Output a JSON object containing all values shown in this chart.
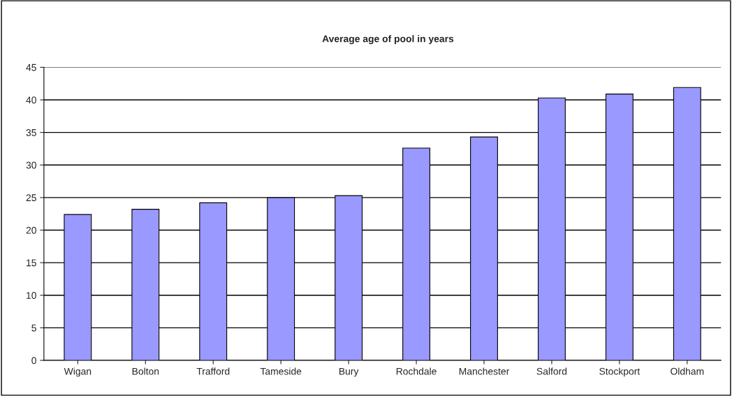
{
  "chart_data": {
    "type": "bar",
    "title": "Average age of pool in years",
    "categories": [
      "Wigan",
      "Bolton",
      "Trafford",
      "Tameside",
      "Bury",
      "Rochdale",
      "Manchester",
      "Salford",
      "Stockport",
      "Oldham"
    ],
    "values": [
      22.4,
      23.2,
      24.2,
      25.0,
      25.3,
      32.6,
      34.3,
      40.3,
      40.9,
      41.9
    ],
    "color": "#9999ff",
    "ylim": [
      0,
      45
    ],
    "yticks": [
      0,
      5,
      10,
      15,
      20,
      25,
      30,
      35,
      40,
      45
    ],
    "grid": "y",
    "legend": false
  }
}
